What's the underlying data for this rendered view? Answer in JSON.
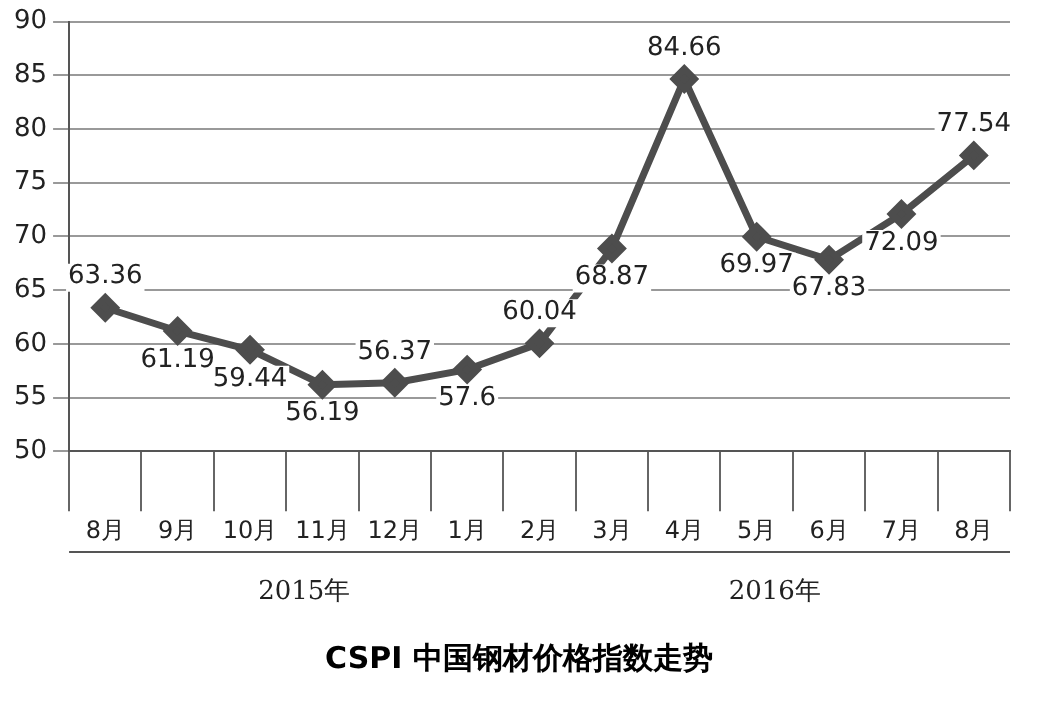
{
  "chart_data": {
    "type": "line",
    "title": "CSPI 中国钢材价格指数走势",
    "categories": [
      "8月",
      "9月",
      "10月",
      "11月",
      "12月",
      "1月",
      "2月",
      "3月",
      "4月",
      "5月",
      "6月",
      "7月",
      "8月"
    ],
    "values": [
      63.36,
      61.19,
      59.44,
      56.19,
      56.37,
      57.6,
      60.04,
      68.87,
      84.66,
      69.97,
      67.83,
      72.09,
      77.54
    ],
    "color": "#4d4d4d",
    "marker": "diamond",
    "data_labels": true,
    "grid": "y",
    "ylim": [
      50,
      90
    ],
    "yticks": [
      50,
      55,
      60,
      65,
      70,
      75,
      80,
      85,
      90
    ],
    "annotations": [
      "2015年",
      "2016年"
    ]
  }
}
